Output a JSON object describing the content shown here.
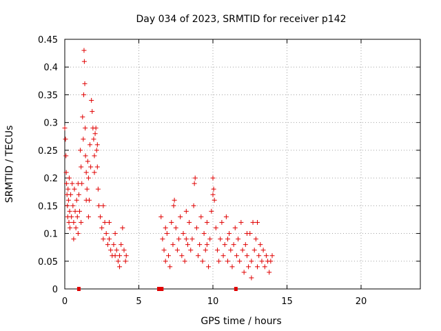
{
  "chart_data": {
    "type": "scatter",
    "title": "Day 034 of 2023, SRMTID for receiver p142",
    "xlabel": "GPS time / hours",
    "ylabel": "SRMTID / TECUs",
    "xlim": [
      0,
      24
    ],
    "ylim": [
      0,
      0.45
    ],
    "xticks": [
      0,
      5,
      10,
      15,
      20
    ],
    "xtick_labels": [
      "0",
      "5",
      "10",
      "15",
      "20"
    ],
    "yticks": [
      0,
      0.05,
      0.1,
      0.15,
      0.2,
      0.25,
      0.3,
      0.35,
      0.4,
      0.45
    ],
    "ytick_labels": [
      "0",
      "0.05",
      "0.1",
      "0.15",
      "0.2",
      "0.25",
      "0.3",
      "0.35",
      "0.4",
      "0.45"
    ],
    "grid": true,
    "marker": "+",
    "color": "#e00000",
    "series": [
      {
        "name": "SRMTID",
        "points": [
          [
            0.0,
            0.29
          ],
          [
            0.05,
            0.27
          ],
          [
            0.08,
            0.24
          ],
          [
            0.1,
            0.21
          ],
          [
            0.12,
            0.19
          ],
          [
            0.15,
            0.17
          ],
          [
            0.18,
            0.15
          ],
          [
            0.2,
            0.13
          ],
          [
            0.22,
            0.18
          ],
          [
            0.25,
            0.16
          ],
          [
            0.28,
            0.12
          ],
          [
            0.3,
            0.2
          ],
          [
            0.33,
            0.14
          ],
          [
            0.35,
            0.11
          ],
          [
            0.4,
            0.17
          ],
          [
            0.45,
            0.13
          ],
          [
            0.5,
            0.19
          ],
          [
            0.55,
            0.15
          ],
          [
            0.6,
            0.12
          ],
          [
            0.65,
            0.18
          ],
          [
            0.7,
            0.14
          ],
          [
            0.75,
            0.11
          ],
          [
            0.8,
            0.16
          ],
          [
            0.85,
            0.13
          ],
          [
            0.9,
            0.1
          ],
          [
            0.95,
            0.17
          ],
          [
            1.0,
            0.14
          ],
          [
            1.05,
            0.25
          ],
          [
            1.1,
            0.22
          ],
          [
            1.15,
            0.19
          ],
          [
            1.2,
            0.31
          ],
          [
            1.25,
            0.27
          ],
          [
            1.28,
            0.35
          ],
          [
            1.3,
            0.43
          ],
          [
            1.32,
            0.41
          ],
          [
            1.35,
            0.37
          ],
          [
            1.38,
            0.29
          ],
          [
            1.4,
            0.24
          ],
          [
            1.45,
            0.21
          ],
          [
            1.5,
            0.18
          ],
          [
            1.55,
            0.23
          ],
          [
            1.6,
            0.2
          ],
          [
            1.65,
            0.16
          ],
          [
            1.7,
            0.26
          ],
          [
            1.75,
            0.22
          ],
          [
            1.8,
            0.34
          ],
          [
            1.85,
            0.32
          ],
          [
            1.9,
            0.29
          ],
          [
            1.95,
            0.27
          ],
          [
            2.0,
            0.24
          ],
          [
            2.05,
            0.28
          ],
          [
            2.1,
            0.29
          ],
          [
            2.15,
            0.25
          ],
          [
            2.2,
            0.22
          ],
          [
            2.25,
            0.18
          ],
          [
            2.3,
            0.15
          ],
          [
            2.4,
            0.13
          ],
          [
            2.5,
            0.11
          ],
          [
            2.6,
            0.09
          ],
          [
            2.7,
            0.12
          ],
          [
            2.8,
            0.1
          ],
          [
            2.9,
            0.08
          ],
          [
            3.0,
            0.09
          ],
          [
            3.1,
            0.07
          ],
          [
            3.2,
            0.06
          ],
          [
            3.3,
            0.08
          ],
          [
            3.4,
            0.1
          ],
          [
            3.5,
            0.07
          ],
          [
            3.6,
            0.05
          ],
          [
            3.7,
            0.06
          ],
          [
            3.8,
            0.08
          ],
          [
            3.9,
            0.11
          ],
          [
            4.0,
            0.07
          ],
          [
            4.1,
            0.05
          ],
          [
            4.15,
            0.06
          ],
          [
            0.6,
            0.09
          ],
          [
            1.1,
            0.12
          ],
          [
            1.6,
            0.13
          ],
          [
            2.0,
            0.21
          ],
          [
            2.2,
            0.26
          ],
          [
            2.6,
            0.15
          ],
          [
            3.0,
            0.12
          ],
          [
            3.4,
            0.06
          ],
          [
            3.7,
            0.04
          ],
          [
            0.9,
            0.19
          ],
          [
            1.45,
            0.16
          ],
          [
            6.5,
            0.13
          ],
          [
            6.6,
            0.09
          ],
          [
            6.7,
            0.07
          ],
          [
            6.8,
            0.05
          ],
          [
            6.9,
            0.1
          ],
          [
            7.0,
            0.06
          ],
          [
            7.1,
            0.04
          ],
          [
            7.2,
            0.12
          ],
          [
            7.3,
            0.08
          ],
          [
            7.4,
            0.16
          ],
          [
            7.5,
            0.11
          ],
          [
            7.6,
            0.07
          ],
          [
            7.7,
            0.09
          ],
          [
            7.8,
            0.13
          ],
          [
            7.9,
            0.06
          ],
          [
            8.0,
            0.1
          ],
          [
            8.1,
            0.05
          ],
          [
            8.2,
            0.14
          ],
          [
            8.3,
            0.08
          ],
          [
            8.4,
            0.12
          ],
          [
            8.5,
            0.07
          ],
          [
            8.6,
            0.09
          ],
          [
            8.7,
            0.15
          ],
          [
            8.8,
            0.2
          ],
          [
            8.9,
            0.11
          ],
          [
            9.0,
            0.06
          ],
          [
            9.1,
            0.08
          ],
          [
            9.2,
            0.13
          ],
          [
            9.3,
            0.05
          ],
          [
            9.4,
            0.1
          ],
          [
            9.5,
            0.07
          ],
          [
            9.6,
            0.12
          ],
          [
            9.7,
            0.04
          ],
          [
            9.8,
            0.09
          ],
          [
            9.9,
            0.14
          ],
          [
            10.0,
            0.2
          ],
          [
            10.05,
            0.18
          ],
          [
            10.1,
            0.16
          ],
          [
            10.2,
            0.11
          ],
          [
            10.3,
            0.07
          ],
          [
            10.4,
            0.05
          ],
          [
            10.5,
            0.09
          ],
          [
            10.6,
            0.12
          ],
          [
            10.7,
            0.06
          ],
          [
            10.8,
            0.08
          ],
          [
            10.9,
            0.13
          ],
          [
            11.0,
            0.05
          ],
          [
            11.1,
            0.1
          ],
          [
            11.2,
            0.07
          ],
          [
            11.3,
            0.04
          ],
          [
            11.4,
            0.08
          ],
          [
            11.5,
            0.11
          ],
          [
            11.6,
            0.06
          ],
          [
            11.7,
            0.09
          ],
          [
            11.8,
            0.05
          ],
          [
            11.9,
            0.12
          ],
          [
            12.0,
            0.07
          ],
          [
            12.1,
            0.03
          ],
          [
            12.2,
            0.08
          ],
          [
            12.3,
            0.06
          ],
          [
            12.4,
            0.04
          ],
          [
            12.5,
            0.1
          ],
          [
            12.6,
            0.05
          ],
          [
            12.7,
            0.12
          ],
          [
            12.8,
            0.07
          ],
          [
            12.9,
            0.09
          ],
          [
            13.0,
            0.04
          ],
          [
            13.1,
            0.06
          ],
          [
            13.2,
            0.08
          ],
          [
            13.3,
            0.05
          ],
          [
            13.4,
            0.07
          ],
          [
            13.5,
            0.04
          ],
          [
            13.6,
            0.06
          ],
          [
            13.7,
            0.05
          ],
          [
            13.8,
            0.03
          ],
          [
            13.9,
            0.05
          ],
          [
            14.0,
            0.06
          ],
          [
            7.35,
            0.15
          ],
          [
            8.75,
            0.19
          ],
          [
            10.0,
            0.17
          ],
          [
            6.8,
            0.11
          ],
          [
            8.2,
            0.09
          ],
          [
            9.6,
            0.08
          ],
          [
            11.0,
            0.09
          ],
          [
            12.3,
            0.1
          ],
          [
            13.0,
            0.12
          ],
          [
            12.6,
            0.02
          ]
        ]
      }
    ],
    "axis_markers": [
      {
        "x": 0.95,
        "y": 0
      },
      {
        "x": 6.35,
        "y": 0
      },
      {
        "x": 6.55,
        "y": 0
      },
      {
        "x": 11.55,
        "y": 0
      }
    ]
  }
}
